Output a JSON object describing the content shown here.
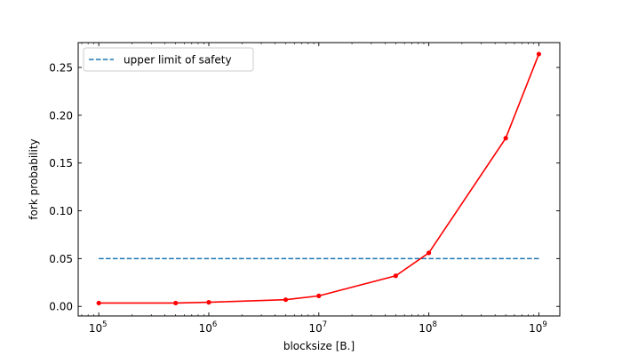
{
  "chart_data": {
    "type": "line",
    "xlabel": "blocksize [B.]",
    "ylabel": "fork probability",
    "xscale": "log",
    "xlim": [
      65000,
      1550000000
    ],
    "ylim": [
      -0.01,
      0.276
    ],
    "x_ticks": [
      {
        "value": 100000,
        "base": "10",
        "exp": "5"
      },
      {
        "value": 1000000,
        "base": "10",
        "exp": "6"
      },
      {
        "value": 10000000,
        "base": "10",
        "exp": "7"
      },
      {
        "value": 100000000,
        "base": "10",
        "exp": "8"
      },
      {
        "value": 1000000000,
        "base": "10",
        "exp": "9"
      }
    ],
    "y_ticks": [
      {
        "value": 0.0,
        "label": "0.00"
      },
      {
        "value": 0.05,
        "label": "0.05"
      },
      {
        "value": 0.1,
        "label": "0.10"
      },
      {
        "value": 0.15,
        "label": "0.15"
      },
      {
        "value": 0.2,
        "label": "0.20"
      },
      {
        "value": 0.25,
        "label": "0.25"
      }
    ],
    "series": [
      {
        "color": "#ff0000",
        "style": "solid",
        "marker": "dot",
        "x": [
          100000,
          500000,
          1000000,
          5000000,
          10000000,
          50000000,
          100000000,
          500000000,
          1000000000
        ],
        "y": [
          0.0035,
          0.0035,
          0.0043,
          0.007,
          0.011,
          0.032,
          0.056,
          0.176,
          0.264
        ]
      },
      {
        "name": "upper limit of safety",
        "color": "#1f77b4",
        "style": "dashed",
        "x": [
          100000,
          1000000000
        ],
        "y": [
          0.05,
          0.05
        ]
      }
    ],
    "legend_position": "upper-left",
    "grid": false,
    "tick_direction": "in",
    "ticks_on_all_sides": true
  }
}
